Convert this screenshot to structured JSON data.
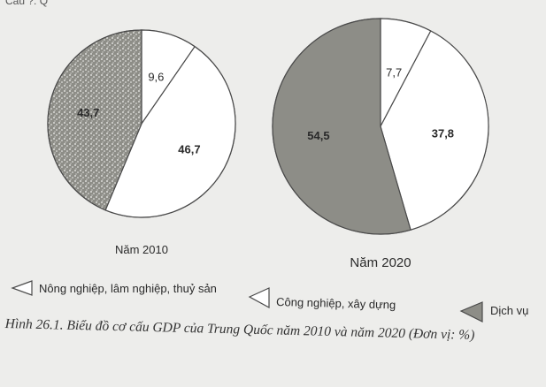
{
  "top_fragment": "Câu ?: Q",
  "chart_data": [
    {
      "type": "pie",
      "title": "Năm 2010",
      "categories": [
        "Nông nghiệp, lâm nghiệp, thuỷ sản",
        "Công nghiệp, xây dựng",
        "Dịch vụ"
      ],
      "values": [
        9.6,
        46.7,
        43.7
      ],
      "labels": [
        "9,6",
        "46,7",
        "43,7"
      ]
    },
    {
      "type": "pie",
      "title": "Năm 2020",
      "categories": [
        "Nông nghiệp, lâm nghiệp, thuỷ sản",
        "Công nghiệp, xây dựng",
        "Dịch vụ"
      ],
      "values": [
        7.7,
        37.8,
        54.5
      ],
      "labels": [
        "7,7",
        "37,8",
        "54,5"
      ]
    }
  ],
  "legend": [
    {
      "label": "Nông nghiệp, lâm nghiệp, thuỷ sản",
      "marker": "open-triangle-left"
    },
    {
      "label": "Công nghiệp, xây dựng",
      "marker": "open-triangle-left"
    },
    {
      "label": "Dịch vụ",
      "marker": "filled-triangle-left"
    }
  ],
  "caption": "Hình 26.1. Biểu đồ cơ cấu GDP của Trung Quốc năm 2010 và năm 2020 (Đơn vị: %)",
  "colors": {
    "agriculture": "#ffffff",
    "industry": "#ffffff",
    "services": "#8d8d87",
    "stroke": "#4a4a4a",
    "background": "#ededeb"
  }
}
